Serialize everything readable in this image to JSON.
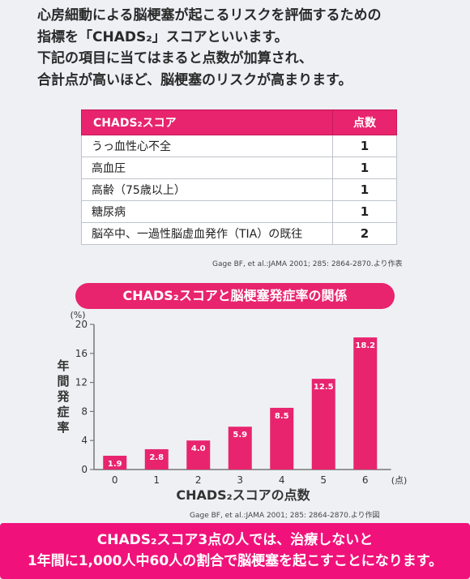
{
  "intro": {
    "line1": "心房細動による脳梗塞が起こるリスクを評価するための",
    "line2": "指標を「CHADS₂」スコアといいます。",
    "line3": "下記の項目に当てはまると点数が加算され、",
    "line4": "合計点が高いほど、脳梗塞のリスクが高まります。"
  },
  "table": {
    "header_item": "CHADS₂スコア",
    "header_points": "点数",
    "rows": [
      {
        "item": "うっ血性心不全",
        "points": "1"
      },
      {
        "item": "高血圧",
        "points": "1"
      },
      {
        "item": "高齢（75歳以上）",
        "points": "1"
      },
      {
        "item": "糖尿病",
        "points": "1"
      },
      {
        "item": "脳卒中、一過性脳虚血発作（TIA）の既往",
        "points": "2"
      }
    ],
    "citation": "Gage BF, et al.:JAMA 2001; 285: 2864-2870.より作表"
  },
  "chart_data": {
    "type": "bar",
    "title": "CHADS₂スコアと脳梗塞発症率の関係",
    "categories": [
      "0",
      "1",
      "2",
      "3",
      "4",
      "5",
      "6"
    ],
    "values": [
      1.9,
      2.8,
      4.0,
      5.9,
      8.5,
      12.5,
      18.2
    ],
    "value_labels": [
      "1.9",
      "2.8",
      "4.0",
      "5.9",
      "8.5",
      "12.5",
      "18.2"
    ],
    "xlabel": "CHADS₂スコアの点数",
    "xunit": "(点)",
    "ylabel": "年間発症率",
    "yunit": "(%)",
    "ylim": [
      0,
      20
    ],
    "yticks": [
      "0",
      "4",
      "8",
      "12",
      "16",
      "20"
    ],
    "grid": false,
    "bar_color": "#e8246e",
    "citation": "Gage BF, et al.:JAMA 2001; 285: 2864-2870.より作図"
  },
  "bottom": {
    "line1": "CHADS₂スコア3点の人では、治療しないと",
    "line2": "1年間に1,000人中60人の割合で脳梗塞を起こすことになります。"
  }
}
